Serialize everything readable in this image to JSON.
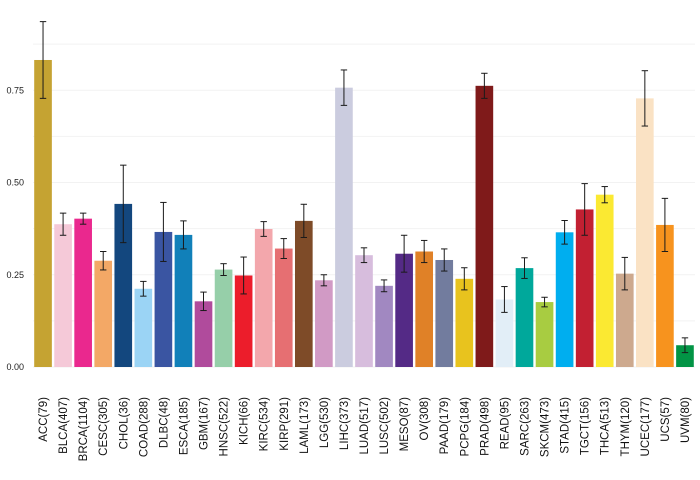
{
  "chart_data": {
    "type": "bar",
    "title": "",
    "xlabel": "",
    "ylabel": "",
    "ylim": [
      0,
      0.94
    ],
    "yticks": [
      0,
      0.25,
      0.5,
      0.75
    ],
    "ytick_labels": [
      "0.00",
      "0.25",
      "0.50",
      "0.75"
    ],
    "grid": true,
    "legend": "none",
    "categories": [
      "ACC(79)",
      "BLCA(407)",
      "BRCA(1104)",
      "CESC(305)",
      "CHOL(36)",
      "COAD(288)",
      "DLBC(48)",
      "ESCA(185)",
      "GBM(167)",
      "HNSC(522)",
      "KICH(66)",
      "KIRC(534)",
      "KIRP(291)",
      "LAML(173)",
      "LGG(530)",
      "LIHC(373)",
      "LUAD(517)",
      "LUSC(502)",
      "MESO(87)",
      "OV(308)",
      "PAAD(179)",
      "PCPG(184)",
      "PRAD(498)",
      "READ(95)",
      "SARC(263)",
      "SKCM(473)",
      "STAD(415)",
      "TGCT(156)",
      "THCA(513)",
      "THYM(120)",
      "UCEC(177)",
      "UCS(57)",
      "UVM(80)"
    ],
    "values": [
      0.832,
      0.387,
      0.402,
      0.288,
      0.442,
      0.212,
      0.366,
      0.358,
      0.178,
      0.264,
      0.248,
      0.374,
      0.321,
      0.396,
      0.235,
      0.757,
      0.303,
      0.22,
      0.307,
      0.313,
      0.29,
      0.239,
      0.762,
      0.183,
      0.268,
      0.176,
      0.365,
      0.427,
      0.467,
      0.253,
      0.728,
      0.385,
      0.059
    ],
    "errors": [
      0.104,
      0.03,
      0.015,
      0.025,
      0.105,
      0.02,
      0.08,
      0.038,
      0.025,
      0.016,
      0.05,
      0.02,
      0.027,
      0.045,
      0.015,
      0.048,
      0.02,
      0.016,
      0.05,
      0.03,
      0.03,
      0.03,
      0.034,
      0.035,
      0.028,
      0.013,
      0.032,
      0.07,
      0.022,
      0.044,
      0.075,
      0.072,
      0.02
    ],
    "colors": [
      "#C5A332",
      "#F5C9D8",
      "#EA288E",
      "#F3A866",
      "#13477E",
      "#9BD4F5",
      "#3A55A2",
      "#1180B9",
      "#B04B9C",
      "#96CFA9",
      "#EC1D2B",
      "#F3A7AC",
      "#E66F72",
      "#7E4B28",
      "#D19AC5",
      "#CBCCDF",
      "#D7BDDD",
      "#A188C1",
      "#542A86",
      "#E08127",
      "#727C9E",
      "#E8C31E",
      "#7F1A1A",
      "#E2EEF7",
      "#00A89B",
      "#A8CC41",
      "#00AEEF",
      "#C22032",
      "#FBE932",
      "#CDA98E",
      "#FAE2C4",
      "#F7931E",
      "#029445"
    ]
  }
}
